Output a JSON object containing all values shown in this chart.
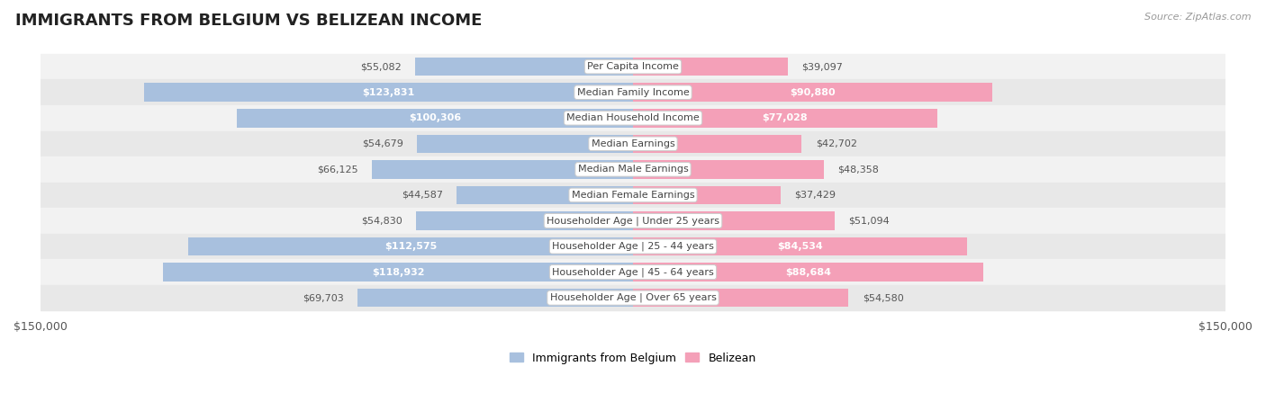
{
  "title": "IMMIGRANTS FROM BELGIUM VS BELIZEAN INCOME",
  "source": "Source: ZipAtlas.com",
  "categories": [
    "Per Capita Income",
    "Median Family Income",
    "Median Household Income",
    "Median Earnings",
    "Median Male Earnings",
    "Median Female Earnings",
    "Householder Age | Under 25 years",
    "Householder Age | 25 - 44 years",
    "Householder Age | 45 - 64 years",
    "Householder Age | Over 65 years"
  ],
  "belgium_values": [
    55082,
    123831,
    100306,
    54679,
    66125,
    44587,
    54830,
    112575,
    118932,
    69703
  ],
  "belizean_values": [
    39097,
    90880,
    77028,
    42702,
    48358,
    37429,
    51094,
    84534,
    88684,
    54580
  ],
  "max_val": 150000,
  "belgium_color": "#a8c0de",
  "belizean_color": "#f4a0b8",
  "bg_color": "#ffffff",
  "row_colors": [
    "#f2f2f2",
    "#e8e8e8"
  ],
  "label_threshold_belgium": 90000,
  "label_threshold_belizean": 75000,
  "xlabel_left": "$150,000",
  "xlabel_right": "$150,000",
  "title_fontsize": 13,
  "source_fontsize": 8,
  "label_fontsize": 8,
  "cat_fontsize": 8
}
